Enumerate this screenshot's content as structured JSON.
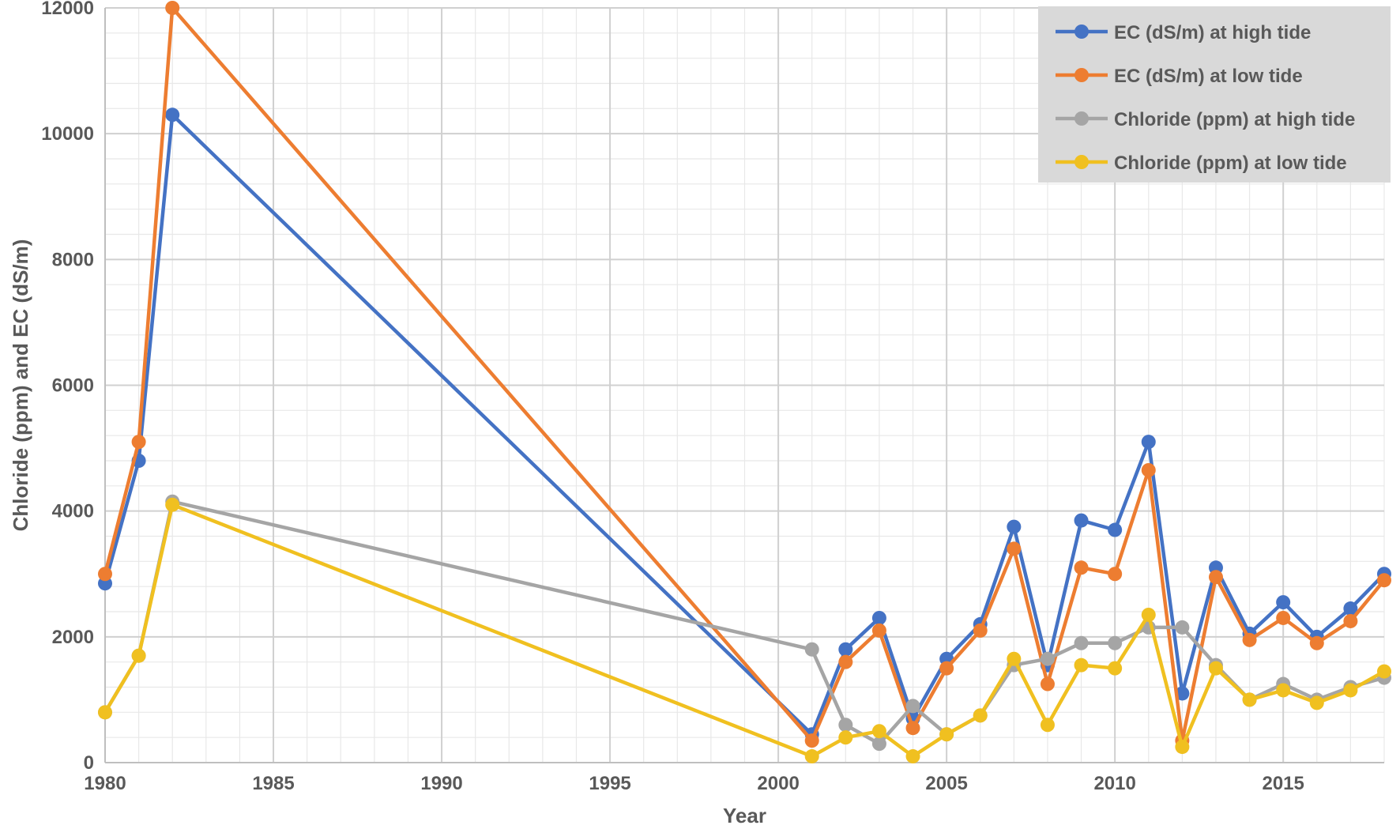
{
  "chart_data": {
    "type": "line",
    "title": "",
    "xlabel": "Year",
    "ylabel": "Chloride (ppm) and EC (dS/m)",
    "xlim": [
      1980,
      2018
    ],
    "ylim": [
      0,
      12000
    ],
    "x_ticks": [
      1980,
      1985,
      1990,
      1995,
      2000,
      2005,
      2010,
      2015
    ],
    "y_ticks": [
      0,
      2000,
      4000,
      6000,
      8000,
      10000,
      12000
    ],
    "grid": true,
    "legend_position": "top-right",
    "x": [
      1980,
      1981,
      1982,
      2001,
      2002,
      2003,
      2004,
      2005,
      2006,
      2007,
      2008,
      2009,
      2010,
      2011,
      2012,
      2013,
      2014,
      2015,
      2016,
      2017,
      2018
    ],
    "series": [
      {
        "name": "EC (dS/m) at high tide",
        "color": "#4472C4",
        "values": [
          2850,
          4800,
          10300,
          450,
          1800,
          2300,
          700,
          1650,
          2200,
          3750,
          1550,
          3850,
          3700,
          5100,
          1100,
          3100,
          2050,
          2550,
          2000,
          2450,
          3000
        ]
      },
      {
        "name": "EC (dS/m) at low tide",
        "color": "#ED7D31",
        "values": [
          3000,
          5100,
          12000,
          350,
          1600,
          2100,
          550,
          1500,
          2100,
          3400,
          1250,
          3100,
          3000,
          4650,
          350,
          2950,
          1950,
          2300,
          1900,
          2250,
          2900
        ]
      },
      {
        "name": "Chloride (ppm) at high tide",
        "color": "#A5A5A5",
        "values": [
          800,
          1700,
          4150,
          1800,
          600,
          300,
          900,
          450,
          750,
          1550,
          1650,
          1900,
          1900,
          2150,
          2150,
          1550,
          1000,
          1250,
          1000,
          1200,
          1350
        ]
      },
      {
        "name": "Chloride (ppm) at low tide",
        "color": "#F0C020",
        "values": [
          800,
          1700,
          4100,
          100,
          400,
          500,
          100,
          450,
          750,
          1650,
          600,
          1550,
          1500,
          2350,
          250,
          1500,
          1000,
          1150,
          950,
          1150,
          1450
        ]
      }
    ]
  }
}
